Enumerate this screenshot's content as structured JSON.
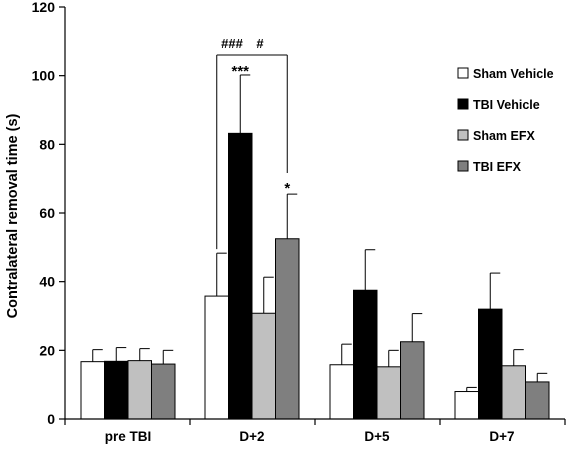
{
  "chart_data": {
    "type": "bar",
    "title": "",
    "xlabel": "",
    "ylabel": "Contralateral removal time (s)",
    "ylim": [
      0,
      120
    ],
    "yticks": [
      0,
      20,
      40,
      60,
      80,
      100,
      120
    ],
    "grid": false,
    "legend_position": "right",
    "categories": [
      "pre TBI",
      "D+2",
      "D+5",
      "D+7"
    ],
    "series": [
      {
        "name": "Sham Vehicle",
        "color": "#ffffff",
        "values": [
          16.7,
          35.8,
          15.8,
          8.0
        ],
        "errors": [
          3.5,
          12.5,
          6.0,
          1.2
        ]
      },
      {
        "name": "TBI Vehicle",
        "color": "#000000",
        "values": [
          16.8,
          83.2,
          37.5,
          32.0
        ],
        "errors": [
          4.0,
          17.0,
          11.8,
          10.5
        ]
      },
      {
        "name": "Sham EFX",
        "color": "#c0c0c0",
        "values": [
          17.0,
          30.8,
          15.2,
          15.5
        ],
        "errors": [
          3.5,
          10.5,
          4.8,
          4.7
        ]
      },
      {
        "name": "TBI EFX",
        "color": "#7f7f7f",
        "values": [
          16.0,
          52.5,
          22.5,
          10.8
        ],
        "errors": [
          4.0,
          13.0,
          8.2,
          2.5
        ]
      }
    ],
    "annotations": {
      "hash_left": "###",
      "hash_right": "#",
      "stars_tbi_vehicle_d2": "***",
      "star_tbi_efx_d2": "*"
    }
  }
}
